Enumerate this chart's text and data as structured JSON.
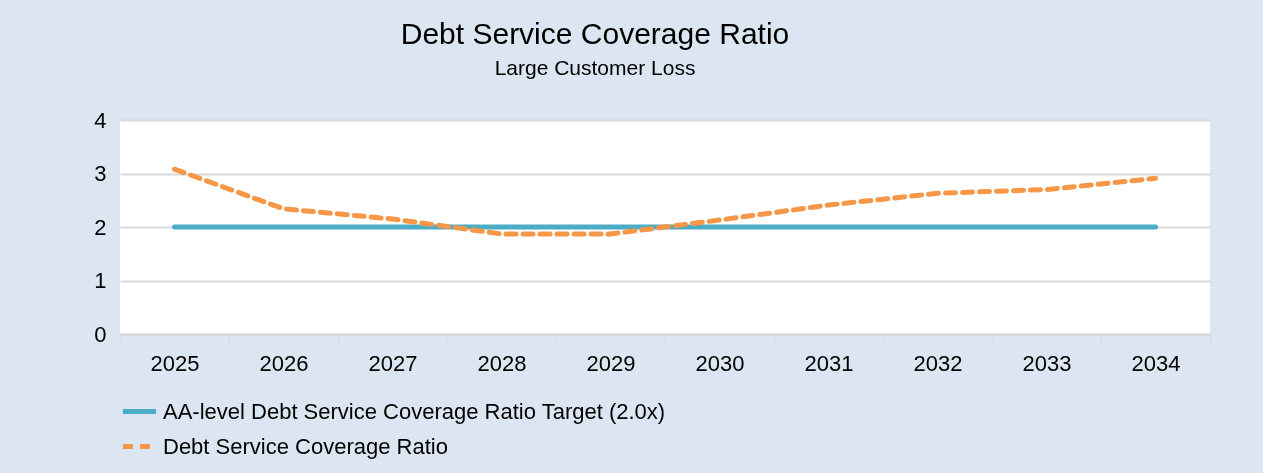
{
  "chart_data": {
    "type": "line",
    "title": "Debt Service Coverage Ratio",
    "subtitle": "Large Customer Loss",
    "categories": [
      "2025",
      "2026",
      "2027",
      "2028",
      "2029",
      "2030",
      "2031",
      "2032",
      "2033",
      "2034"
    ],
    "series": [
      {
        "name": "AA-level Debt Service Coverage Ratio Target (2.0x)",
        "color": "#4bacc6",
        "line_style": "solid",
        "values": [
          2,
          2,
          2,
          2,
          2,
          2,
          2,
          2,
          2,
          2
        ]
      },
      {
        "name": "Debt Service Coverage Ratio",
        "color": "#f79646",
        "line_style": "dashed",
        "values": [
          3.08,
          2.34,
          2.15,
          1.87,
          1.87,
          2.13,
          2.41,
          2.63,
          2.7,
          2.91
        ]
      }
    ],
    "ylim": [
      0,
      4
    ],
    "yticks": [
      0,
      1,
      2,
      3,
      4
    ],
    "grid": "y",
    "legend": "bottom",
    "marker": "none"
  }
}
